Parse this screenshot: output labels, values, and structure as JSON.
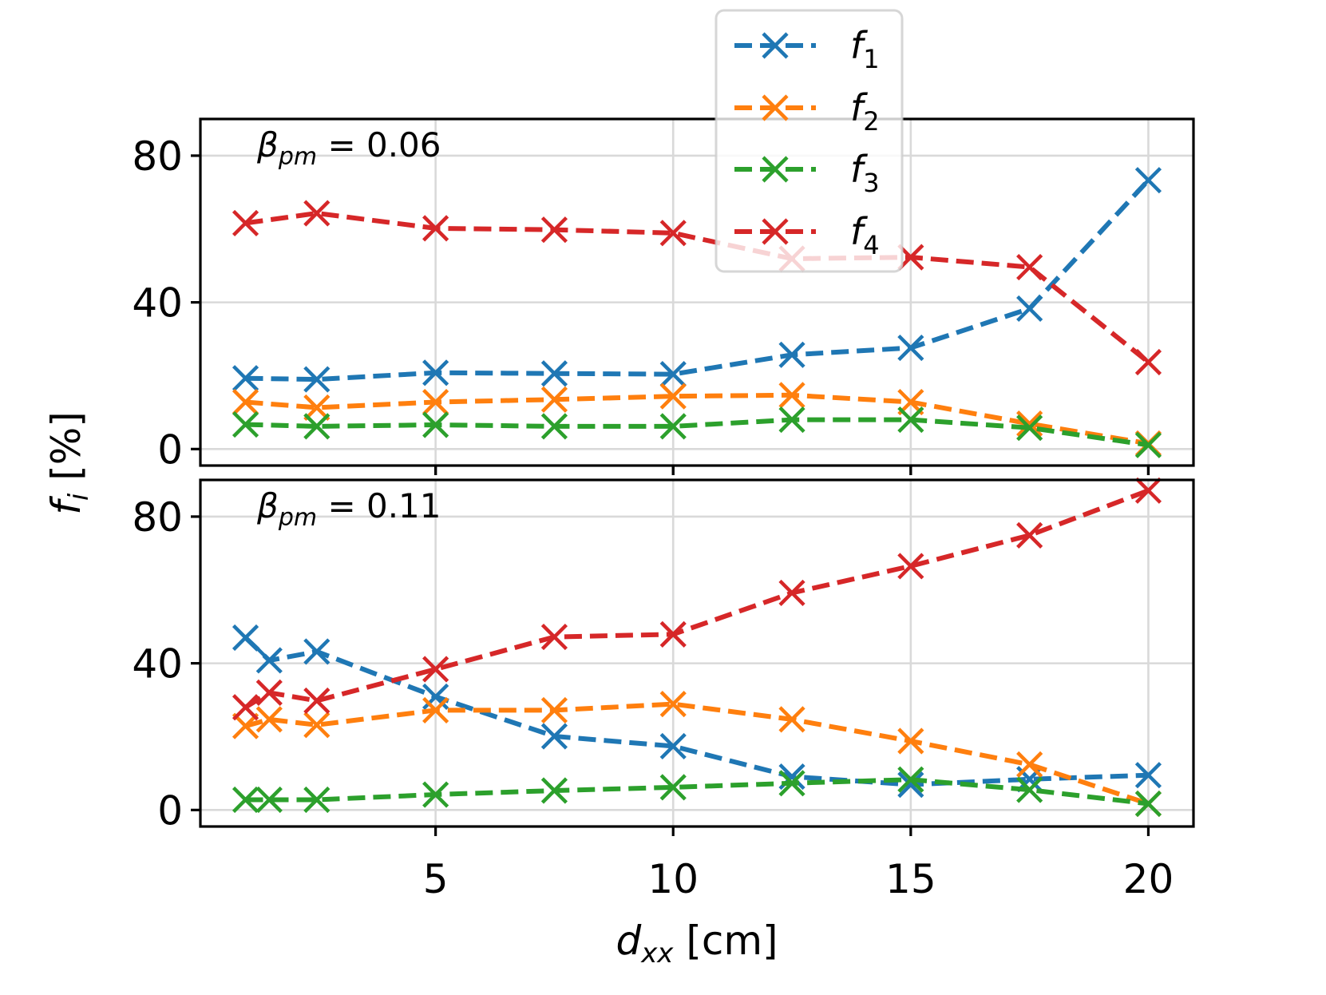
{
  "chart_data": [
    {
      "type": "line",
      "panel": "top",
      "annotation": {
        "symbol": "β",
        "subscript": "pm",
        "text": " = 0.06"
      },
      "x": [
        1,
        2.5,
        5,
        7.5,
        10,
        12.5,
        15,
        17.5,
        20
      ],
      "series": [
        {
          "name": "f1",
          "color": "#1f77b4",
          "values": [
            19.3,
            19.0,
            20.8,
            20.6,
            20.4,
            25.7,
            27.6,
            38.3,
            73.3
          ]
        },
        {
          "name": "f2",
          "color": "#ff7f0e",
          "values": [
            12.8,
            11.3,
            12.8,
            13.5,
            14.4,
            14.7,
            12.8,
            6.9,
            1.5
          ]
        },
        {
          "name": "f3",
          "color": "#2ca02c",
          "values": [
            6.7,
            6.2,
            6.6,
            6.2,
            6.2,
            8.0,
            8.0,
            5.8,
            1.1
          ]
        },
        {
          "name": "f4",
          "color": "#d62728",
          "values": [
            61.6,
            64.3,
            60.2,
            59.8,
            58.9,
            51.9,
            52.3,
            49.6,
            23.7
          ]
        }
      ],
      "xlim": [
        0.05,
        20.95
      ],
      "ylim": [
        -4.5,
        90
      ],
      "yticks": [
        0,
        40,
        80
      ],
      "xticks": [
        5,
        10,
        15,
        20
      ],
      "grid": true,
      "line_style": "dashed",
      "marker": "x"
    },
    {
      "type": "line",
      "panel": "bottom",
      "annotation": {
        "symbol": "β",
        "subscript": "pm",
        "text": " = 0.11"
      },
      "x": [
        1,
        1.5,
        2.5,
        5,
        7.5,
        10,
        12.5,
        15,
        17.5,
        20
      ],
      "series": [
        {
          "name": "f1",
          "color": "#1f77b4",
          "values": [
            47.0,
            40.8,
            43.2,
            30.9,
            20.1,
            17.4,
            9.1,
            6.9,
            8.4,
            9.5
          ]
        },
        {
          "name": "f2",
          "color": "#ff7f0e",
          "values": [
            22.9,
            24.7,
            23.2,
            27.2,
            27.2,
            28.9,
            24.7,
            18.8,
            12.4,
            1.7
          ]
        },
        {
          "name": "f3",
          "color": "#2ca02c",
          "values": [
            2.8,
            2.8,
            2.8,
            4.2,
            5.3,
            6.2,
            7.3,
            8.3,
            5.5,
            1.7
          ]
        },
        {
          "name": "f4",
          "color": "#d62728",
          "values": [
            28.0,
            32.0,
            29.8,
            38.4,
            47.2,
            47.9,
            59.2,
            66.5,
            74.9,
            87.1
          ]
        }
      ],
      "xlim": [
        0.05,
        20.95
      ],
      "ylim": [
        -4.5,
        90
      ],
      "yticks": [
        0,
        40,
        80
      ],
      "xticks": [
        5,
        10,
        15,
        20
      ],
      "grid": true,
      "line_style": "dashed",
      "marker": "x"
    }
  ],
  "labels": {
    "xlabel_var": "d",
    "xlabel_sub": "xx",
    "xlabel_unit": " [cm]",
    "ylabel_var": "f",
    "ylabel_sub": "i",
    "ylabel_unit": " [%]",
    "annot_top_sym": "β",
    "annot_top_sub": "pm",
    "annot_top_val": " = 0.06",
    "annot_bottom_sym": "β",
    "annot_bottom_sub": "pm",
    "annot_bottom_val": " = 0.11"
  },
  "legend": {
    "placement": "top-center",
    "entries": [
      {
        "var": "f",
        "sub": "1",
        "color": "#1f77b4"
      },
      {
        "var": "f",
        "sub": "2",
        "color": "#ff7f0e"
      },
      {
        "var": "f",
        "sub": "3",
        "color": "#2ca02c"
      },
      {
        "var": "f",
        "sub": "4",
        "color": "#d62728"
      }
    ]
  }
}
